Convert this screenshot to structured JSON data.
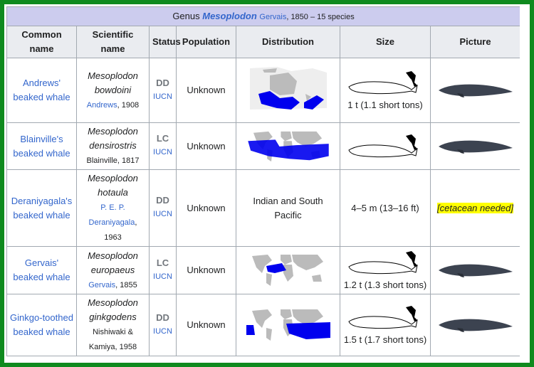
{
  "caption": {
    "prefix": "Genus",
    "genus": "Mesoplodon",
    "authority": "Gervais",
    "rest": ", 1850 – 15 species"
  },
  "headers": [
    "Common name",
    "Scientific name",
    "Status",
    "Population",
    "Distribution",
    "Size",
    "Picture"
  ],
  "rows": [
    {
      "common_name": "Andrews' beaked whale",
      "genus": "Mesoplodon",
      "species": "bowdoini",
      "authority_link": "Andrews",
      "authority_rest": ", 1908",
      "status": "DD",
      "status_source": "IUCN",
      "population": "Unknown",
      "size": "1 t (1.1 short tons)"
    },
    {
      "common_name": "Blainville's beaked whale",
      "genus": "Mesoplodon",
      "species": "densirostris",
      "authority_rest": "Blainville, 1817",
      "status": "LC",
      "status_source": "IUCN",
      "population": "Unknown"
    },
    {
      "common_name": "Deraniyagala's beaked whale",
      "genus": "Mesoplodon",
      "species": "hotaula",
      "authority_link": "P. E. P. Deraniyagala",
      "authority_rest": ", 1963",
      "status": "DD",
      "status_source": "IUCN",
      "population": "Unknown",
      "distribution": "Indian and South Pacific",
      "size": "4–5 m (13–16 ft)",
      "picture_note": "[cetacean needed]"
    },
    {
      "common_name": "Gervais' beaked whale",
      "genus": "Mesoplodon",
      "species": "europaeus",
      "authority_link": "Gervais",
      "authority_rest": ", 1855",
      "status": "LC",
      "status_source": "IUCN",
      "population": "Unknown",
      "size": "1.2 t (1.3 short tons)"
    },
    {
      "common_name": "Ginkgo-toothed beaked whale",
      "genus": "Mesoplodon",
      "species": "ginkgodens",
      "authority_rest": "Nishiwaki & Kamiya, 1958",
      "status": "DD",
      "status_source": "IUCN",
      "population": "Unknown",
      "size": "1.5 t (1.7 short tons)"
    }
  ]
}
